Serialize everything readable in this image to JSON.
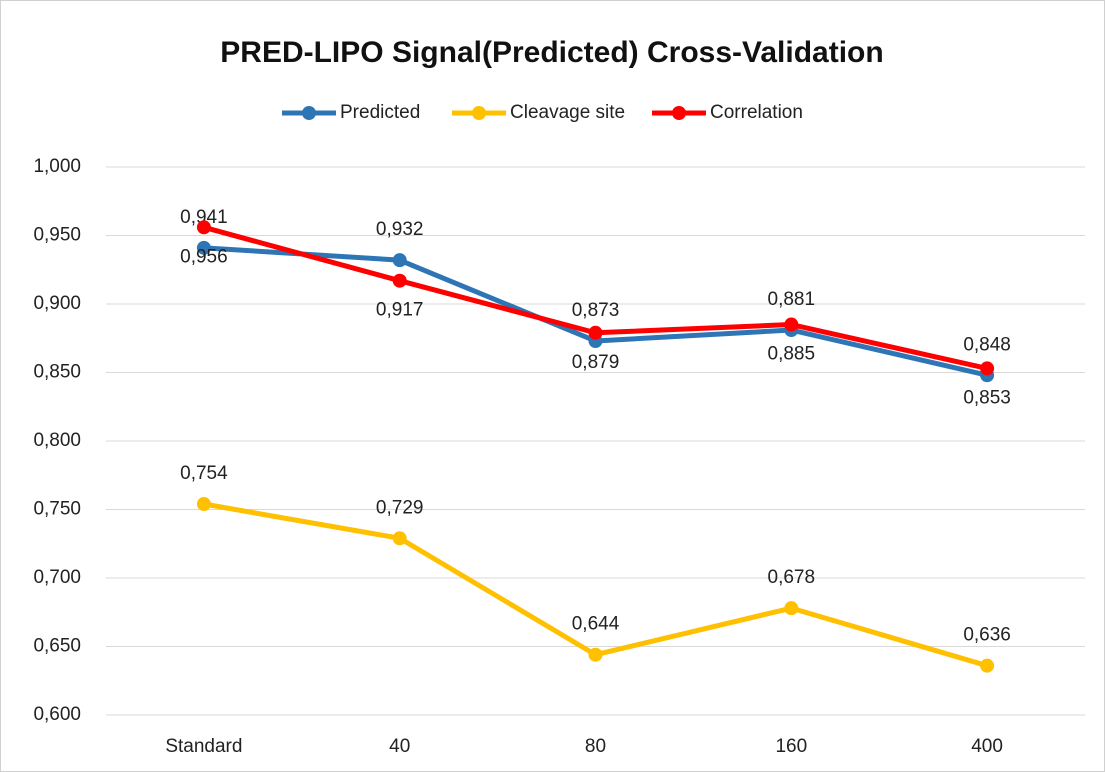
{
  "chart_data": {
    "type": "line",
    "title": "PRED-LIPO Signal(Predicted) Cross-Validation",
    "categories": [
      "Standard",
      "40",
      "80",
      "160",
      "400"
    ],
    "series": [
      {
        "name": "Predicted",
        "color": "#2e75b6",
        "values": [
          0.941,
          0.932,
          0.873,
          0.881,
          0.848
        ],
        "value_labels": [
          "0,941",
          "0,932",
          "0,873",
          "0,881",
          "0,848"
        ]
      },
      {
        "name": "Cleavage site",
        "color": "#ffc000",
        "values": [
          0.754,
          0.729,
          0.644,
          0.678,
          0.636
        ],
        "value_labels": [
          "0,754",
          "0,729",
          "0,644",
          "0,678",
          "0,636"
        ]
      },
      {
        "name": "Correlation",
        "color": "#ff0000",
        "values": [
          0.956,
          0.917,
          0.879,
          0.885,
          0.853
        ],
        "value_labels": [
          "0,956",
          "0,917",
          "0,879",
          "0,885",
          "0,853"
        ]
      }
    ],
    "ylim": [
      0.6,
      1.0
    ],
    "yticks": [
      {
        "value": 0.6,
        "label": "0,600"
      },
      {
        "value": 0.65,
        "label": "0,650"
      },
      {
        "value": 0.7,
        "label": "0,700"
      },
      {
        "value": 0.75,
        "label": "0,750"
      },
      {
        "value": 0.8,
        "label": "0,800"
      },
      {
        "value": 0.85,
        "label": "0,850"
      },
      {
        "value": 0.9,
        "label": "0,900"
      },
      {
        "value": 0.95,
        "label": "0,950"
      },
      {
        "value": 1.0,
        "label": "1,000"
      }
    ],
    "grid": true,
    "legend": "top"
  }
}
